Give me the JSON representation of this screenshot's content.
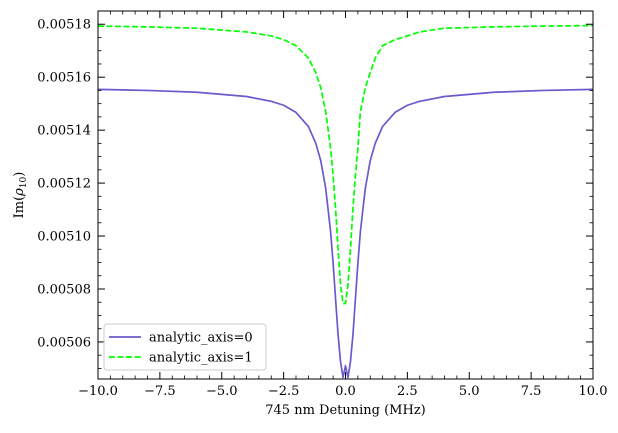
{
  "chart_data": {
    "type": "line",
    "title": "",
    "xlabel": "745 nm Detuning (MHz)",
    "ylabel_main": "Im(",
    "ylabel_greek": "ρ",
    "ylabel_sub": "10",
    "ylabel_close": ")",
    "xlim": [
      -10,
      10
    ],
    "ylim": [
      0.005046,
      0.005185
    ],
    "xticks": [
      -10.0,
      -7.5,
      -5.0,
      -2.5,
      0.0,
      2.5,
      5.0,
      7.5,
      10.0
    ],
    "xtick_labels": [
      "−10.0",
      "−7.5",
      "−5.0",
      "−2.5",
      "0.0",
      "2.5",
      "5.0",
      "7.5",
      "10.0"
    ],
    "yticks": [
      0.00506,
      0.00508,
      0.0051,
      0.00512,
      0.00514,
      0.00516,
      0.00518
    ],
    "ytick_labels": [
      "0.00506",
      "0.00508",
      "0.00510",
      "0.00512",
      "0.00514",
      "0.00516",
      "0.00518"
    ],
    "grid": false,
    "legend_position": "lower-left",
    "series": [
      {
        "name": "analytic_axis=0",
        "color": "#6a5acd",
        "dash": "solid",
        "baseline": 0.005156,
        "dip_min": 0.005051,
        "half_width": 0.22,
        "x": [
          -10,
          -8,
          -6,
          -4,
          -3,
          -2.5,
          -2,
          -1.5,
          -1.2,
          -1,
          -0.8,
          -0.6,
          -0.5,
          -0.4,
          -0.3,
          -0.2,
          -0.1,
          0,
          0.1,
          0.2,
          0.3,
          0.4,
          0.5,
          0.6,
          0.8,
          1,
          1.2,
          1.5,
          2,
          2.5,
          3,
          4,
          6,
          8,
          10
        ],
        "y": [
          0.0051554,
          0.005155,
          0.0051543,
          0.0051527,
          0.0051509,
          0.0051494,
          0.0051467,
          0.0051414,
          0.005135,
          0.0051285,
          0.005118,
          0.0051015,
          0.0050897,
          0.0050761,
          0.0050627,
          0.0050525,
          0.0050466,
          0.005051,
          0.0050466,
          0.0050525,
          0.0050627,
          0.0050761,
          0.0050897,
          0.0051015,
          0.005118,
          0.0051285,
          0.005135,
          0.0051414,
          0.0051467,
          0.0051494,
          0.0051509,
          0.0051527,
          0.0051543,
          0.005155,
          0.0051554
        ]
      },
      {
        "name": "analytic_axis=1",
        "color": "#00ff00",
        "dash": "dashed",
        "x": [
          -10,
          -8,
          -6,
          -4,
          -3,
          -2.5,
          -2,
          -1.5,
          -1.2,
          -1,
          -0.8,
          -0.6,
          -0.5,
          -0.4,
          -0.3,
          -0.2,
          -0.1,
          0,
          0.1,
          0.2,
          0.3,
          0.4,
          0.5,
          0.6,
          0.8,
          1,
          1.2,
          1.5,
          2,
          2.5,
          3,
          4,
          6,
          8,
          10
        ],
        "y": [
          0.0051793,
          0.005179,
          0.0051785,
          0.0051771,
          0.0051756,
          0.0051742,
          0.0051719,
          0.0051672,
          0.0051617,
          0.005156,
          0.005147,
          0.005133,
          0.0051229,
          0.0051103,
          0.0050951,
          0.0050816,
          0.0050745,
          0.0050745,
          0.0050816,
          0.0050951,
          0.0051103,
          0.0051229,
          0.005133,
          0.005147,
          0.005156,
          0.0051617,
          0.0051672,
          0.0051719,
          0.0051742,
          0.0051756,
          0.0051771,
          0.0051785,
          0.005179,
          0.0051793,
          0.0051795
        ]
      }
    ]
  }
}
